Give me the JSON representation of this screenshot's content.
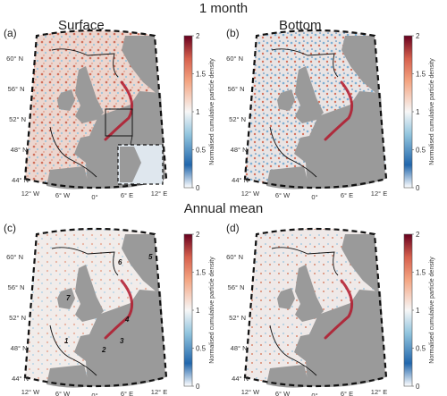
{
  "titles": {
    "top_section": "1 month",
    "bottom_section": "Annual mean"
  },
  "chart_data": [
    {
      "type": "heatmap",
      "panel": "(a)",
      "title": "Surface",
      "colorbar": {
        "label": "Normalised cumulative particle density",
        "ticks": [
          "0",
          "0.5",
          "1",
          "1.5",
          "2"
        ],
        "range": [
          0,
          2
        ],
        "colormap": "white-blue-white-red"
      },
      "lat_ticks": [
        "60° N",
        "56° N",
        "52° N",
        "48° N",
        "44° N"
      ],
      "lon_ticks": [
        "12° W",
        "6° W",
        "0°",
        "6° E",
        "12° E"
      ],
      "inset": true
    },
    {
      "type": "heatmap",
      "panel": "(b)",
      "title": "Bottom",
      "colorbar": {
        "label": "Normalised cumulative particle density",
        "ticks": [
          "0",
          "0.5",
          "1",
          "1.5",
          "2"
        ],
        "range": [
          0,
          2
        ]
      },
      "lat_ticks": [
        "60° N",
        "56° N",
        "52° N",
        "48° N",
        "44° N"
      ],
      "lon_ticks": [
        "12° W",
        "6° W",
        "0°",
        "6° E",
        "12° E"
      ]
    },
    {
      "type": "heatmap",
      "panel": "(c)",
      "title": "",
      "colorbar": {
        "label": "Normalised cumulative particle density",
        "ticks": [
          "0",
          "0.5",
          "1",
          "1.5",
          "2"
        ],
        "range": [
          0,
          2
        ]
      },
      "lat_ticks": [
        "60° N",
        "56° N",
        "52° N",
        "48° N",
        "44° N"
      ],
      "lon_ticks": [
        "12° W",
        "6° W",
        "0°",
        "6° E",
        "12° E"
      ],
      "region_labels": [
        "1",
        "2",
        "3",
        "4",
        "5",
        "6",
        "7"
      ]
    },
    {
      "type": "heatmap",
      "panel": "(d)",
      "title": "",
      "colorbar": {
        "label": "Normalised cumulative particle density",
        "ticks": [
          "0",
          "0.5",
          "1",
          "1.5",
          "2"
        ],
        "range": [
          0,
          2
        ]
      },
      "lat_ticks": [
        "60° N",
        "56° N",
        "52° N",
        "48° N",
        "44° N"
      ],
      "lon_ticks": [
        "12° W",
        "6° W",
        "0°",
        "6° E",
        "12° E"
      ]
    }
  ]
}
